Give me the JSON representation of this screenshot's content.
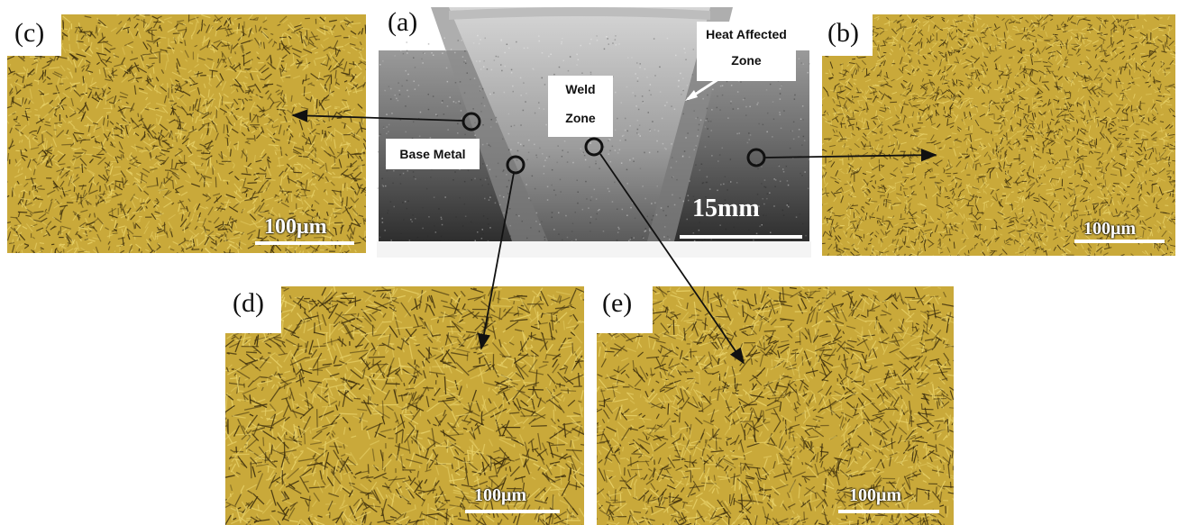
{
  "panels": {
    "a": {
      "letter": "(a)",
      "scale": "15mm"
    },
    "b": {
      "letter": "(b)",
      "scale": "100μm"
    },
    "c": {
      "letter": "(c)",
      "scale": "100μm"
    },
    "d": {
      "letter": "(d)",
      "scale": "100μm"
    },
    "e": {
      "letter": "(e)",
      "scale": "100μm"
    }
  },
  "labels": {
    "heat_affected_line1": "Heat Affected",
    "heat_affected_line2": "Zone",
    "weld_line1": "Weld",
    "weld_line2": "Zone",
    "base_metal": "Base Metal"
  },
  "colors": {
    "micro_base": "#c9a93a",
    "micro_dark": "#3a2c0c",
    "micro_light": "#e8d26a",
    "weld_gray": "#8a8a8a"
  }
}
